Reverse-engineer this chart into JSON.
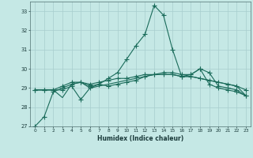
{
  "x": [
    0,
    1,
    2,
    3,
    4,
    5,
    6,
    7,
    8,
    9,
    10,
    11,
    12,
    13,
    14,
    15,
    16,
    17,
    18,
    19,
    20,
    21,
    22,
    23
  ],
  "line1": [
    27.0,
    27.5,
    28.8,
    29.0,
    29.2,
    29.3,
    29.1,
    29.2,
    29.5,
    29.8,
    30.5,
    31.2,
    31.8,
    33.3,
    32.8,
    31.0,
    29.6,
    29.7,
    30.0,
    29.2,
    29.0,
    28.9,
    28.8,
    28.6
  ],
  "line2": [
    28.9,
    28.9,
    28.9,
    28.9,
    29.1,
    28.4,
    29.0,
    29.2,
    29.1,
    29.2,
    29.3,
    29.4,
    29.6,
    29.7,
    29.7,
    29.7,
    29.6,
    29.6,
    29.5,
    29.4,
    29.3,
    29.2,
    29.1,
    28.9
  ],
  "line3": [
    28.9,
    28.9,
    28.9,
    28.5,
    29.2,
    29.3,
    29.0,
    29.1,
    29.2,
    29.3,
    29.4,
    29.5,
    29.6,
    29.7,
    29.7,
    29.7,
    29.6,
    29.6,
    29.5,
    29.4,
    29.3,
    29.2,
    29.1,
    28.6
  ],
  "line4": [
    28.9,
    28.9,
    28.9,
    29.1,
    29.3,
    29.3,
    29.2,
    29.3,
    29.4,
    29.5,
    29.5,
    29.6,
    29.7,
    29.7,
    29.8,
    29.8,
    29.7,
    29.7,
    30.0,
    29.8,
    29.1,
    29.0,
    28.9,
    28.6
  ],
  "line_color": "#1a6b5a",
  "bg_color": "#c5e8e5",
  "grid_color": "#a8cece",
  "xlabel": "Humidex (Indice chaleur)",
  "ylim": [
    27,
    33.5
  ],
  "xlim": [
    -0.5,
    23.5
  ],
  "yticks": [
    27,
    28,
    29,
    30,
    31,
    32,
    33
  ],
  "xticks": [
    0,
    1,
    2,
    3,
    4,
    5,
    6,
    7,
    8,
    9,
    10,
    11,
    12,
    13,
    14,
    15,
    16,
    17,
    18,
    19,
    20,
    21,
    22,
    23
  ]
}
